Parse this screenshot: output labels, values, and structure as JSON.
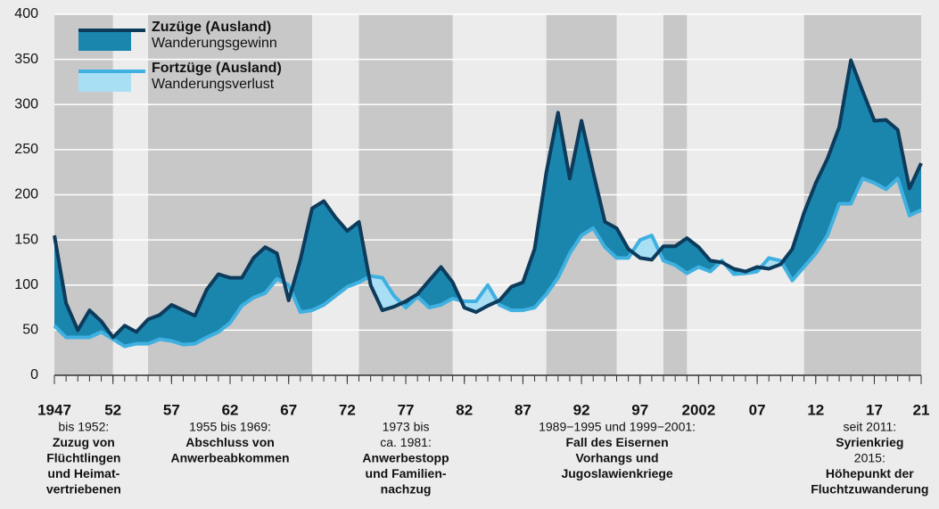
{
  "chart_data": {
    "type": "area-difference",
    "x": [
      1947,
      1948,
      1949,
      1950,
      1951,
      1952,
      1953,
      1954,
      1955,
      1956,
      1957,
      1958,
      1959,
      1960,
      1961,
      1962,
      1963,
      1964,
      1965,
      1966,
      1967,
      1968,
      1969,
      1970,
      1971,
      1972,
      1973,
      1974,
      1975,
      1976,
      1977,
      1978,
      1979,
      1980,
      1981,
      1982,
      1983,
      1984,
      1985,
      1986,
      1987,
      1988,
      1989,
      1990,
      1991,
      1992,
      1993,
      1994,
      1995,
      1996,
      1997,
      1998,
      1999,
      2000,
      2001,
      2002,
      2003,
      2004,
      2005,
      2006,
      2007,
      2008,
      2009,
      2010,
      2011,
      2012,
      2013,
      2014,
      2015,
      2016,
      2017,
      2018,
      2019,
      2020,
      2021
    ],
    "series": [
      {
        "name": "Zuzüge (Ausland)",
        "fill_label": "Wanderungsgewinn",
        "color": "#0d3b5c",
        "fill_color": "#1a86ad",
        "values": [
          155,
          80,
          50,
          72,
          60,
          42,
          55,
          48,
          62,
          67,
          78,
          72,
          66,
          95,
          112,
          108,
          108,
          130,
          142,
          135,
          83,
          128,
          185,
          193,
          175,
          160,
          170,
          100,
          72,
          76,
          82,
          90,
          105,
          120,
          103,
          75,
          70,
          77,
          83,
          98,
          103,
          140,
          225,
          291,
          218,
          282,
          225,
          170,
          163,
          140,
          130,
          128,
          143,
          143,
          152,
          142,
          127,
          125,
          118,
          115,
          120,
          118,
          123,
          140,
          180,
          213,
          240,
          275,
          349,
          315,
          282,
          283,
          272,
          207,
          235
        ]
      },
      {
        "name": "Fortzüge (Ausland)",
        "fill_label": "Wanderungsverlust",
        "color": "#3fb0e0",
        "fill_color": "#a8dff5",
        "values": [
          55,
          42,
          42,
          42,
          48,
          40,
          32,
          35,
          35,
          40,
          38,
          34,
          35,
          42,
          48,
          58,
          77,
          86,
          91,
          107,
          100,
          70,
          72,
          78,
          88,
          98,
          103,
          110,
          108,
          88,
          75,
          87,
          75,
          78,
          85,
          82,
          82,
          100,
          78,
          72,
          72,
          75,
          90,
          108,
          135,
          155,
          163,
          142,
          130,
          130,
          150,
          155,
          127,
          122,
          113,
          120,
          115,
          127,
          112,
          113,
          115,
          130,
          127,
          105,
          120,
          135,
          155,
          190,
          190,
          218,
          213,
          206,
          218,
          177,
          183
        ]
      }
    ],
    "xlim": [
      1947,
      2021
    ],
    "xticks": [
      1947,
      {
        "value": 1952,
        "label": "52"
      },
      {
        "value": 1957,
        "label": "57"
      },
      {
        "value": 1962,
        "label": "62"
      },
      {
        "value": 1967,
        "label": "67"
      },
      {
        "value": 1972,
        "label": "72"
      },
      {
        "value": 1977,
        "label": "77"
      },
      {
        "value": 1982,
        "label": "82"
      },
      {
        "value": 1987,
        "label": "87"
      },
      {
        "value": 1992,
        "label": "92"
      },
      {
        "value": 1997,
        "label": "97"
      },
      2002,
      {
        "value": 2007,
        "label": "07"
      },
      {
        "value": 2012,
        "label": "12"
      },
      {
        "value": 2017,
        "label": "17"
      },
      {
        "value": 2021,
        "label": "21"
      }
    ],
    "ylim": [
      0,
      400
    ],
    "yticks": [
      0,
      50,
      100,
      150,
      200,
      250,
      300,
      350,
      400
    ],
    "grid": true,
    "periods": [
      {
        "start": 1947,
        "end": 1952,
        "lines": [
          {
            "text": "bis 1952:",
            "bold": false
          },
          {
            "text": "Zuzug von",
            "bold": true
          },
          {
            "text": "Flüchtlingen",
            "bold": true
          },
          {
            "text": "und Heimat-",
            "bold": true
          },
          {
            "text": "vertriebenen",
            "bold": true
          }
        ]
      },
      {
        "start": 1955,
        "end": 1969,
        "lines": [
          {
            "text": "1955 bis 1969:",
            "bold": false
          },
          {
            "text": "Abschluss von",
            "bold": true
          },
          {
            "text": "Anwerbeabkommen",
            "bold": true
          }
        ]
      },
      {
        "start": 1973,
        "end": 1981,
        "lines": [
          {
            "text": "1973 bis",
            "bold": false
          },
          {
            "text": "ca. 1981:",
            "bold": false
          },
          {
            "text": "Anwerbestopp",
            "bold": true
          },
          {
            "text": "und Familien-",
            "bold": true
          },
          {
            "text": "nachzug",
            "bold": true
          }
        ]
      },
      {
        "start": 1989,
        "end": 1995,
        "lines": [
          {
            "text": "1989−1995 und 1999−2001:",
            "bold": false
          },
          {
            "text": "Fall des Eisernen",
            "bold": true
          },
          {
            "text": "Vorhangs und",
            "bold": true
          },
          {
            "text": "Jugoslawienkriege",
            "bold": true
          }
        ]
      },
      {
        "start": 1999,
        "end": 2001,
        "lines": []
      },
      {
        "start": 2011,
        "end": 2021,
        "lines": [
          {
            "text": "seit 2011:",
            "bold": false
          },
          {
            "text": "Syrienkrieg",
            "bold": true
          },
          {
            "text": "2015:",
            "bold": false
          },
          {
            "text": "Höhepunkt der",
            "bold": true
          },
          {
            "text": "Fluchtzuwanderung",
            "bold": true
          }
        ]
      }
    ]
  }
}
